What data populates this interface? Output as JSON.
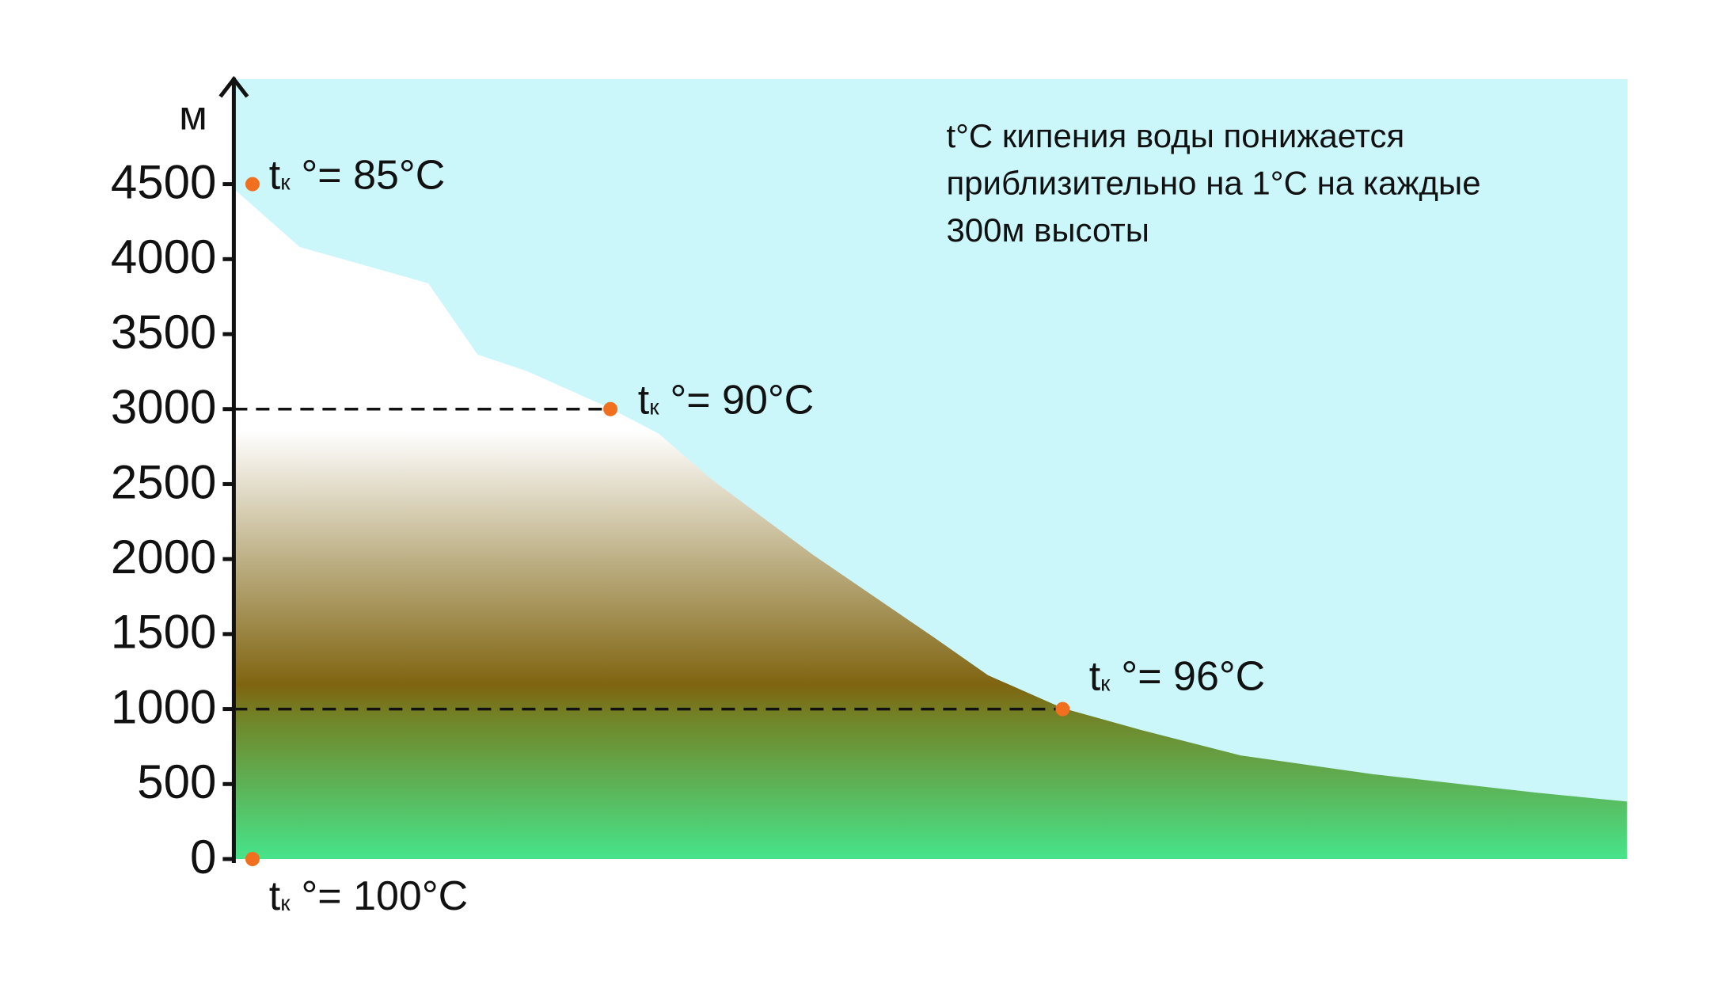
{
  "chart_data": {
    "type": "altitude",
    "y_label": "м",
    "ylim": [
      0,
      5200
    ],
    "yticks": [
      0,
      500,
      1000,
      1500,
      2000,
      2500,
      3000,
      3500,
      4000,
      4500
    ],
    "note": [
      "t°C кипения воды понижается",
      "приблизительно на 1°C на каждые",
      "300м высоты"
    ],
    "points": [
      {
        "altitude": 4500,
        "t": "t",
        "sub": "к",
        "text": "°= 85°C"
      },
      {
        "altitude": 3000,
        "t": "t",
        "sub": "к",
        "text": "°= 90°C"
      },
      {
        "altitude": 1000,
        "t": "t",
        "sub": "к",
        "text": "°= 96°C"
      },
      {
        "altitude": 0,
        "t": "t",
        "sub": "к",
        "text": "°= 100°C"
      }
    ],
    "point_color": "#f07020"
  }
}
